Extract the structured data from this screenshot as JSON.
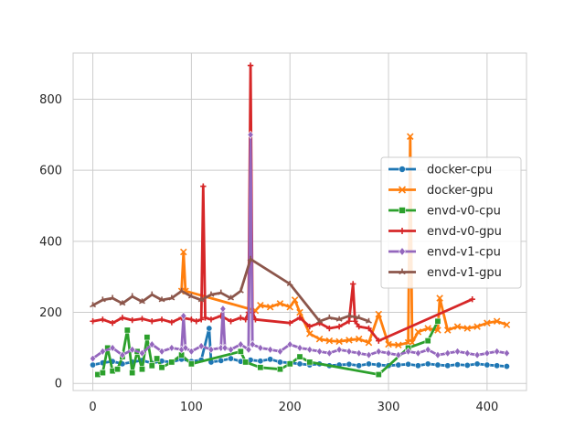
{
  "chart_data": {
    "type": "line",
    "title": "",
    "xlabel": "",
    "ylabel": "",
    "xlim": [
      -20,
      440
    ],
    "ylim": [
      -20,
      930
    ],
    "xticks": [
      0,
      100,
      200,
      300,
      400
    ],
    "yticks": [
      0,
      200,
      400,
      600,
      800
    ],
    "grid": true,
    "legend_position": "right",
    "series": [
      {
        "name": "docker-cpu",
        "color": "#1f77b4",
        "marker": "circle",
        "x": [
          0,
          10,
          20,
          30,
          40,
          50,
          60,
          70,
          80,
          90,
          100,
          110,
          118,
          120,
          130,
          140,
          150,
          160,
          170,
          180,
          190,
          200,
          210,
          220,
          230,
          240,
          250,
          260,
          270,
          280,
          290,
          300,
          310,
          320,
          330,
          340,
          350,
          360,
          370,
          380,
          390,
          400,
          410,
          420
        ],
        "y": [
          52,
          58,
          62,
          55,
          60,
          65,
          57,
          63,
          60,
          68,
          62,
          66,
          155,
          60,
          64,
          70,
          62,
          66,
          63,
          68,
          60,
          58,
          55,
          52,
          55,
          50,
          52,
          54,
          50,
          55,
          52,
          50,
          52,
          54,
          50,
          55,
          52,
          50,
          53,
          51,
          55,
          52,
          50,
          48
        ]
      },
      {
        "name": "docker-gpu",
        "color": "#ff7f0e",
        "marker": "x",
        "x": [
          90,
          92,
          94,
          165,
          170,
          180,
          190,
          200,
          205,
          210,
          220,
          230,
          240,
          250,
          260,
          270,
          280,
          290,
          300,
          310,
          320,
          322,
          324,
          330,
          340,
          350,
          352,
          360,
          370,
          380,
          390,
          400,
          410,
          420
        ],
        "y": [
          260,
          370,
          260,
          205,
          220,
          215,
          225,
          215,
          235,
          200,
          140,
          125,
          120,
          118,
          122,
          125,
          115,
          195,
          110,
          108,
          115,
          695,
          115,
          145,
          155,
          150,
          240,
          150,
          160,
          155,
          160,
          170,
          175,
          165
        ]
      },
      {
        "name": "envd-v0-cpu",
        "color": "#2ca02c",
        "marker": "square",
        "x": [
          5,
          10,
          15,
          20,
          25,
          30,
          35,
          40,
          45,
          50,
          55,
          60,
          65,
          70,
          80,
          90,
          100,
          150,
          155,
          170,
          190,
          200,
          210,
          220,
          290,
          320,
          340,
          350
        ],
        "y": [
          25,
          30,
          100,
          35,
          40,
          75,
          150,
          30,
          90,
          40,
          130,
          50,
          70,
          45,
          60,
          80,
          55,
          90,
          60,
          45,
          40,
          55,
          75,
          60,
          25,
          100,
          120,
          175
        ]
      },
      {
        "name": "envd-v0-gpu",
        "color": "#d62728",
        "marker": "plus",
        "x": [
          0,
          10,
          20,
          30,
          40,
          50,
          60,
          70,
          80,
          90,
          100,
          105,
          110,
          112,
          114,
          120,
          130,
          140,
          150,
          155,
          158,
          160,
          162,
          165,
          200,
          210,
          220,
          230,
          240,
          250,
          260,
          264,
          266,
          270,
          280,
          290,
          385
        ],
        "y": [
          175,
          180,
          170,
          185,
          178,
          182,
          175,
          180,
          172,
          185,
          180,
          175,
          180,
          555,
          185,
          180,
          190,
          175,
          185,
          180,
          200,
          895,
          200,
          180,
          170,
          185,
          160,
          170,
          155,
          160,
          175,
          280,
          175,
          160,
          155,
          120,
          237
        ]
      },
      {
        "name": "envd-v1-cpu",
        "color": "#9467bd",
        "marker": "diamond",
        "x": [
          0,
          10,
          20,
          30,
          40,
          50,
          60,
          70,
          80,
          90,
          92,
          94,
          100,
          110,
          120,
          130,
          132,
          134,
          140,
          150,
          158,
          160,
          162,
          170,
          180,
          190,
          200,
          210,
          220,
          230,
          240,
          250,
          260,
          270,
          280,
          290,
          300,
          310,
          320,
          330,
          340,
          350,
          360,
          370,
          380,
          390,
          400,
          410,
          420
        ],
        "y": [
          70,
          90,
          100,
          80,
          95,
          85,
          110,
          90,
          100,
          95,
          190,
          100,
          90,
          105,
          95,
          100,
          210,
          100,
          95,
          110,
          95,
          700,
          110,
          100,
          95,
          90,
          110,
          100,
          95,
          90,
          85,
          95,
          90,
          85,
          80,
          90,
          85,
          80,
          90,
          85,
          95,
          80,
          85,
          90,
          85,
          80,
          85,
          90,
          85
        ]
      },
      {
        "name": "envd-v1-gpu",
        "color": "#8c564b",
        "marker": "tri",
        "x": [
          0,
          10,
          20,
          30,
          40,
          50,
          60,
          70,
          80,
          90,
          100,
          110,
          120,
          130,
          140,
          150,
          160,
          200,
          230,
          240,
          250,
          260,
          270,
          280
        ],
        "y": [
          220,
          235,
          240,
          225,
          245,
          230,
          250,
          235,
          240,
          260,
          245,
          235,
          250,
          255,
          240,
          260,
          350,
          280,
          175,
          185,
          180,
          190,
          185,
          175
        ]
      }
    ]
  }
}
